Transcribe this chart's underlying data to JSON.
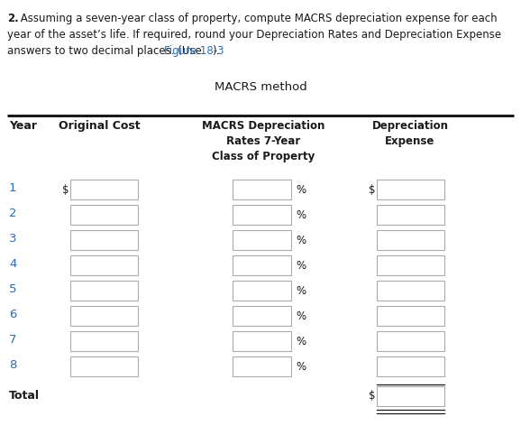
{
  "title_text": "MACRS method",
  "problem_bold": "2.",
  "problem_line1": " Assuming a seven-year class of property, compute MACRS depreciation expense for each",
  "problem_line2": "year of the asset’s life. If required, round your Depreciation Rates and Depreciation Expense",
  "problem_line3_before": "answers to two decimal places. (Use ",
  "problem_line3_link": "Figure 18-3",
  "problem_line3_after": ").",
  "years": [
    1,
    2,
    3,
    4,
    5,
    6,
    7,
    8
  ],
  "total_label": "Total",
  "bg_color": "#ffffff",
  "text_color": "#1a1a1a",
  "blue_color": "#2a6db5",
  "box_border": "#aaaaaa",
  "box_fill": "#ffffff",
  "fig_width": 5.78,
  "fig_height": 4.82,
  "dpi": 100
}
